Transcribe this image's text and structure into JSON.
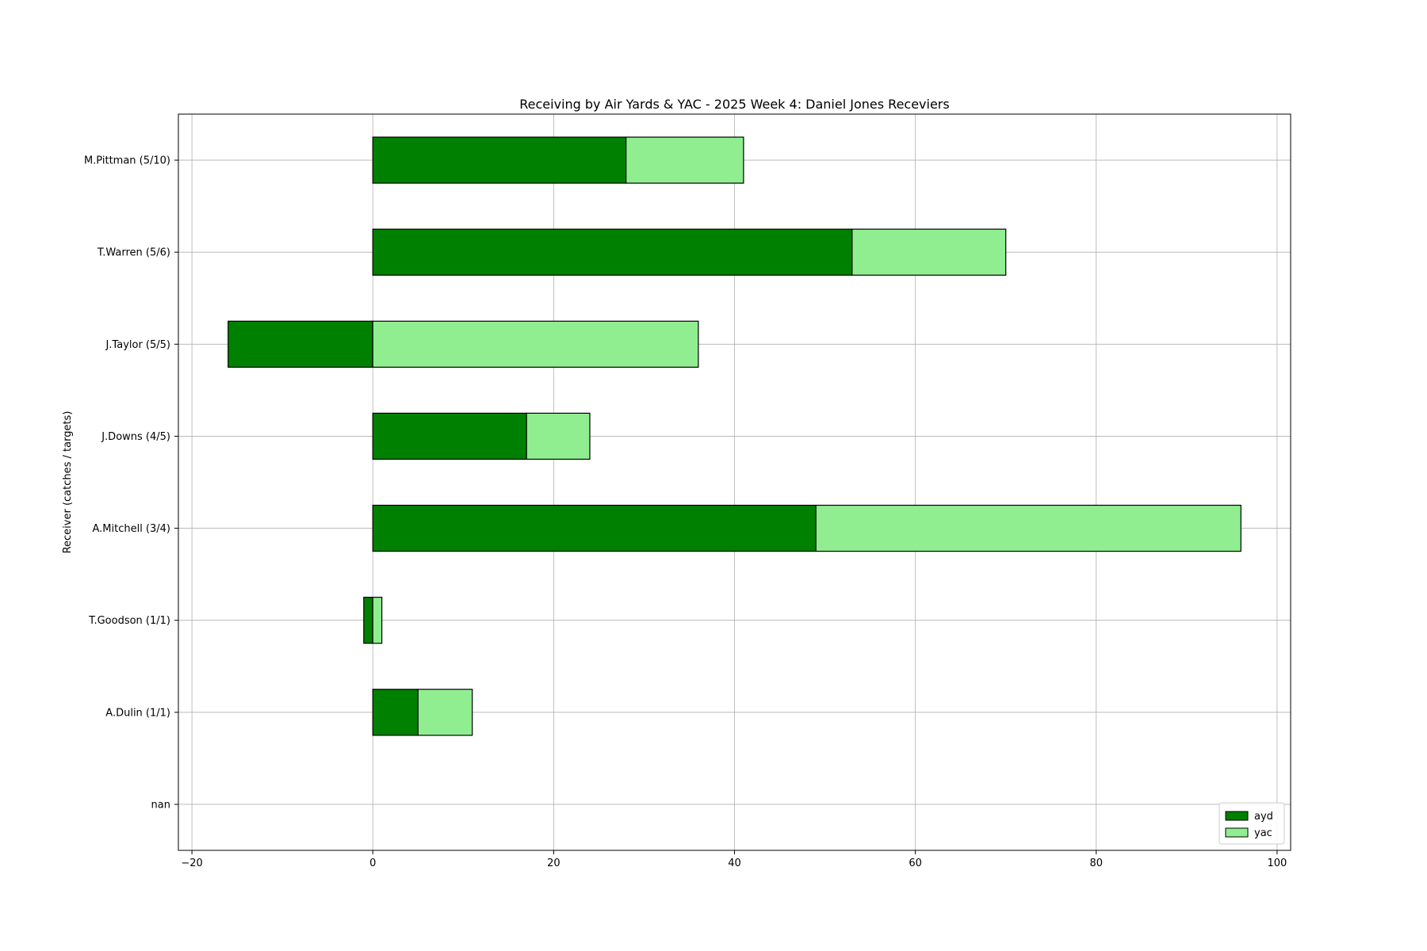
{
  "chart_data": {
    "type": "bar",
    "orientation": "horizontal",
    "stacked": true,
    "title": "Receiving by Air Yards & YAC - 2025 Week 4: Daniel Jones Receviers",
    "xlabel": "",
    "ylabel": "Receiver (catches / targets)",
    "categories": [
      "M.Pittman (5/10)",
      "T.Warren (5/6)",
      "J.Taylor (5/5)",
      "J.Downs (4/5)",
      "A.Mitchell (3/4)",
      "T.Goodson (1/1)",
      "A.Dulin (1/1)",
      "nan"
    ],
    "series": [
      {
        "name": "ayd",
        "color": "#008000",
        "values": [
          28,
          53,
          -16,
          17,
          49,
          -1,
          5,
          0
        ]
      },
      {
        "name": "yac",
        "color": "#90EE90",
        "values": [
          13,
          17,
          36,
          7,
          47,
          1,
          6,
          0
        ]
      }
    ],
    "xlim": [
      -21.5,
      101.5
    ],
    "xticks": [
      -20,
      0,
      20,
      40,
      60,
      80,
      100
    ],
    "xtick_labels": [
      "−20",
      "0",
      "20",
      "40",
      "60",
      "80",
      "100"
    ],
    "grid": true,
    "legend_position": "lower-right"
  }
}
